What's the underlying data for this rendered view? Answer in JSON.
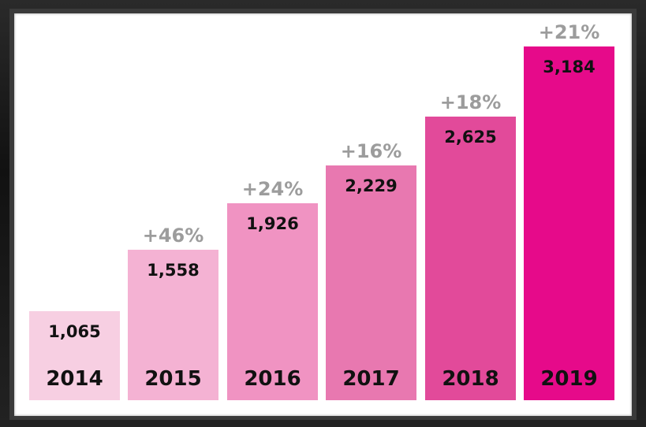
{
  "chart_data": {
    "type": "bar",
    "categories": [
      "2014",
      "2015",
      "2016",
      "2017",
      "2018",
      "2019"
    ],
    "values": [
      1065,
      1558,
      1926,
      2229,
      2625,
      3184
    ],
    "value_labels": [
      "1,065",
      "1,558",
      "1,926",
      "2,229",
      "2,625",
      "3,184"
    ],
    "growth_labels": [
      "",
      "+46%",
      "+24%",
      "+16%",
      "+18%",
      "+21%"
    ],
    "colors": [
      "#f7cfe2",
      "#f4b2d3",
      "#f093c2",
      "#e878b0",
      "#e24a9a",
      "#e60a8a"
    ],
    "growth_label_color": "#9c9c9c",
    "grid": false,
    "axes_visible": false
  }
}
